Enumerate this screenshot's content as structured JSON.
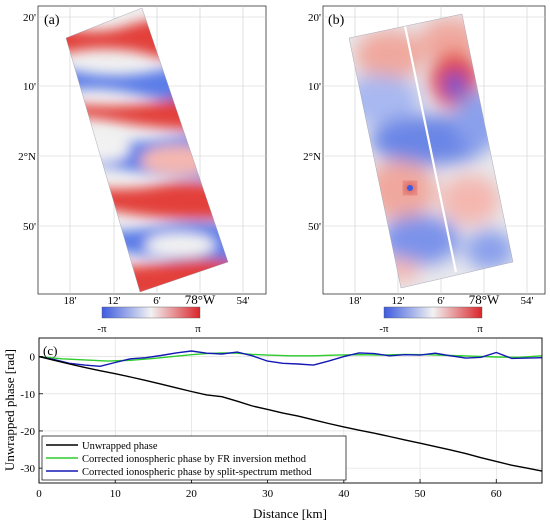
{
  "colors": {
    "blue": "#3d5be0",
    "white": "#f2f2f2",
    "red": "#d9252b",
    "line_black": "#000000",
    "line_green": "#2ecc2e",
    "line_blue": "#1418b4",
    "grid": "#d9d9d9"
  },
  "map_a": {
    "label": "(a)",
    "lat_ticks": [
      "20'",
      "10'",
      "2°N",
      "50'"
    ],
    "lon_ticks": [
      "18'",
      "12'",
      "6'",
      "78°W",
      "54'"
    ],
    "colorbar": {
      "min_label": "-π",
      "max_label": "π"
    }
  },
  "map_b": {
    "label": "(b)",
    "lat_ticks": [
      "20'",
      "10'",
      "2°N",
      "50'"
    ],
    "lon_ticks": [
      "18'",
      "12'",
      "6'",
      "78°W",
      "54'"
    ],
    "colorbar": {
      "min_label": "-π",
      "max_label": "π"
    }
  },
  "chart_data": {
    "type": "line",
    "panel_label": "(c)",
    "xlabel": "Distance [km]",
    "ylabel": "Unwrapped phase [rad]",
    "xlim": [
      0,
      66
    ],
    "ylim": [
      -34,
      5
    ],
    "xticks": [
      0,
      10,
      20,
      30,
      40,
      50,
      60
    ],
    "yticks": [
      0,
      -10,
      -20,
      -30
    ],
    "grid": true,
    "legend_position": "bottom-left",
    "series": [
      {
        "name": "Unwrapped phase",
        "color": "#000000",
        "x": [
          0,
          2,
          4,
          6,
          8,
          10,
          12,
          14,
          16,
          18,
          20,
          22,
          24,
          26,
          28,
          30,
          32,
          34,
          36,
          38,
          40,
          42,
          44,
          46,
          48,
          50,
          52,
          54,
          56,
          58,
          60,
          62,
          64,
          66
        ],
        "y": [
          0,
          -1.0,
          -2.0,
          -2.9,
          -3.8,
          -4.6,
          -5.5,
          -6.4,
          -7.4,
          -8.4,
          -9.4,
          -10.3,
          -10.8,
          -12.0,
          -13.3,
          -14.2,
          -15.2,
          -16.0,
          -17.0,
          -18.0,
          -18.9,
          -19.8,
          -20.6,
          -21.5,
          -22.4,
          -23.3,
          -24.2,
          -25.1,
          -26.1,
          -27.2,
          -28.2,
          -29.2,
          -30.0,
          -30.8
        ]
      },
      {
        "name": "Corrected ionospheric phase by FR inversion method",
        "color": "#2ecc2e",
        "x": [
          0,
          3,
          6,
          9,
          12,
          15,
          18,
          20,
          22,
          24,
          26,
          28,
          30,
          33,
          36,
          39,
          42,
          45,
          48,
          51,
          54,
          57,
          60,
          63,
          66
        ],
        "y": [
          0,
          -0.6,
          -0.9,
          -1.2,
          -1.0,
          -0.5,
          0.1,
          0.5,
          0.8,
          1.0,
          0.9,
          0.6,
          0.4,
          0.2,
          0.2,
          0.4,
          0.5,
          0.4,
          0.6,
          0.5,
          0.3,
          0.1,
          -0.1,
          -0.2,
          0.2
        ]
      },
      {
        "name": "Corrected ionospheric phase by split-spectrum method",
        "color": "#1418b4",
        "x": [
          0,
          2,
          4,
          6,
          8,
          10,
          12,
          14,
          16,
          18,
          20,
          22,
          24,
          26,
          28,
          30,
          32,
          34,
          36,
          38,
          40,
          42,
          44,
          46,
          48,
          50,
          52,
          54,
          56,
          58,
          60,
          62,
          64,
          66
        ],
        "y": [
          0,
          -0.8,
          -1.8,
          -2.3,
          -2.6,
          -1.6,
          -0.6,
          -0.3,
          0.3,
          1.0,
          1.5,
          0.9,
          0.7,
          1.2,
          0.2,
          -1.2,
          -1.8,
          -2.0,
          -2.3,
          -1.2,
          0.0,
          1.0,
          0.8,
          0.2,
          0.5,
          0.4,
          0.9,
          0.2,
          -0.4,
          -0.2,
          1.1,
          -0.5,
          -0.4,
          -0.3
        ]
      }
    ]
  }
}
